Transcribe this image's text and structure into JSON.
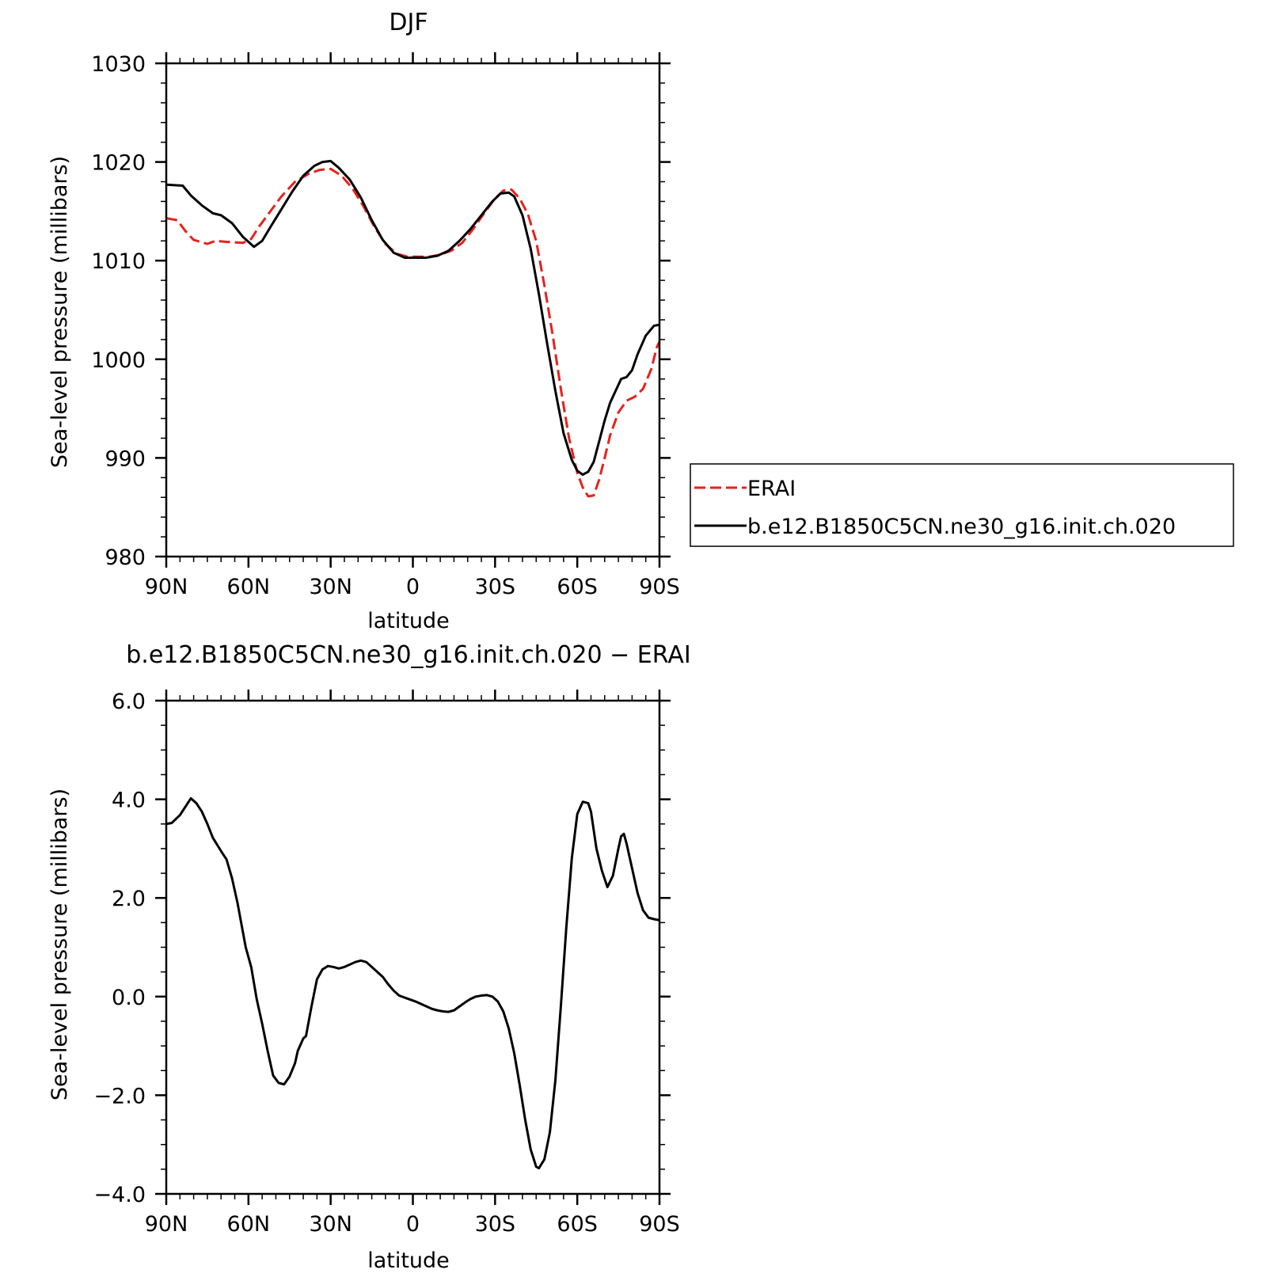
{
  "chart_data": [
    {
      "type": "line",
      "title": "DJF",
      "xlabel": "latitude",
      "ylabel": "Sea-level pressure (millibars)",
      "xlim": [
        -90,
        90
      ],
      "ylim": [
        980,
        1030
      ],
      "x_ticks": [
        {
          "value": -90,
          "label": "90N"
        },
        {
          "value": -60,
          "label": "60N"
        },
        {
          "value": -30,
          "label": "30N"
        },
        {
          "value": 0,
          "label": "0"
        },
        {
          "value": 30,
          "label": "30S"
        },
        {
          "value": 60,
          "label": "60S"
        },
        {
          "value": 90,
          "label": "90S"
        }
      ],
      "y_ticks": [
        {
          "value": 980,
          "label": "980"
        },
        {
          "value": 990,
          "label": "990"
        },
        {
          "value": 1000,
          "label": "1000"
        },
        {
          "value": 1010,
          "label": "1010"
        },
        {
          "value": 1020,
          "label": "1020"
        },
        {
          "value": 1030,
          "label": "1030"
        }
      ],
      "legend_position": "right",
      "series": [
        {
          "name": "ERAI",
          "color": "#e8211c",
          "dash": true,
          "points": [
            [
              -90,
              1014.3
            ],
            [
              -86,
              1014.1
            ],
            [
              -83,
              1013.0
            ],
            [
              -80,
              1012.1
            ],
            [
              -75,
              1011.7
            ],
            [
              -72,
              1012.0
            ],
            [
              -68,
              1011.9
            ],
            [
              -62,
              1011.8
            ],
            [
              -59,
              1012.2
            ],
            [
              -56,
              1013.5
            ],
            [
              -52,
              1015.0
            ],
            [
              -48,
              1016.5
            ],
            [
              -43,
              1018.0
            ],
            [
              -38,
              1018.8
            ],
            [
              -34,
              1019.2
            ],
            [
              -30,
              1019.3
            ],
            [
              -26,
              1018.6
            ],
            [
              -22,
              1017.3
            ],
            [
              -18,
              1015.5
            ],
            [
              -14,
              1013.4
            ],
            [
              -10,
              1011.7
            ],
            [
              -6,
              1010.7
            ],
            [
              -2,
              1010.4
            ],
            [
              2,
              1010.4
            ],
            [
              6,
              1010.4
            ],
            [
              10,
              1010.6
            ],
            [
              14,
              1011.0
            ],
            [
              18,
              1011.8
            ],
            [
              22,
              1013.2
            ],
            [
              26,
              1014.8
            ],
            [
              30,
              1016.3
            ],
            [
              33,
              1017.1
            ],
            [
              36,
              1017.2
            ],
            [
              39,
              1016.3
            ],
            [
              42,
              1014.7
            ],
            [
              45,
              1012.0
            ],
            [
              48,
              1007.5
            ],
            [
              51,
              1002.5
            ],
            [
              54,
              997.0
            ],
            [
              57,
              992.0
            ],
            [
              60,
              988.5
            ],
            [
              62,
              987.0
            ],
            [
              64,
              986.1
            ],
            [
              66,
              986.2
            ],
            [
              68,
              987.8
            ],
            [
              70,
              990.0
            ],
            [
              72,
              992.3
            ],
            [
              75,
              994.6
            ],
            [
              78,
              995.8
            ],
            [
              81,
              996.2
            ],
            [
              84,
              997.0
            ],
            [
              87,
              999.0
            ],
            [
              89,
              1001.2
            ],
            [
              90,
              1001.8
            ]
          ]
        },
        {
          "name": "b.e12.B1850C5CN.ne30_g16.init.ch.020",
          "color": "#000000",
          "dash": false,
          "points": [
            [
              -90,
              1017.7
            ],
            [
              -84,
              1017.6
            ],
            [
              -81,
              1016.6
            ],
            [
              -77,
              1015.6
            ],
            [
              -73,
              1014.8
            ],
            [
              -70,
              1014.6
            ],
            [
              -66,
              1013.8
            ],
            [
              -62,
              1012.4
            ],
            [
              -58,
              1011.4
            ],
            [
              -55,
              1012.0
            ],
            [
              -52,
              1013.4
            ],
            [
              -48,
              1015.2
            ],
            [
              -44,
              1017.0
            ],
            [
              -40,
              1018.6
            ],
            [
              -36,
              1019.6
            ],
            [
              -33,
              1020.0
            ],
            [
              -30,
              1020.1
            ],
            [
              -27,
              1019.4
            ],
            [
              -23,
              1018.2
            ],
            [
              -19,
              1016.4
            ],
            [
              -15,
              1014.1
            ],
            [
              -11,
              1012.1
            ],
            [
              -7,
              1010.8
            ],
            [
              -3,
              1010.3
            ],
            [
              0,
              1010.3
            ],
            [
              5,
              1010.3
            ],
            [
              9,
              1010.5
            ],
            [
              13,
              1011.0
            ],
            [
              17,
              1012.0
            ],
            [
              21,
              1013.2
            ],
            [
              25,
              1014.6
            ],
            [
              29,
              1016.0
            ],
            [
              32,
              1016.8
            ],
            [
              35,
              1016.9
            ],
            [
              37,
              1016.5
            ],
            [
              40,
              1014.6
            ],
            [
              43,
              1011.2
            ],
            [
              46,
              1006.6
            ],
            [
              49,
              1001.6
            ],
            [
              52,
              996.8
            ],
            [
              55,
              992.5
            ],
            [
              58,
              989.8
            ],
            [
              60,
              988.7
            ],
            [
              62,
              988.3
            ],
            [
              64,
              988.6
            ],
            [
              66,
              989.6
            ],
            [
              68,
              991.7
            ],
            [
              70,
              993.8
            ],
            [
              72,
              995.6
            ],
            [
              74,
              996.8
            ],
            [
              76,
              998.0
            ],
            [
              78,
              998.2
            ],
            [
              80,
              998.9
            ],
            [
              82,
              1000.5
            ],
            [
              85,
              1002.4
            ],
            [
              88,
              1003.4
            ],
            [
              90,
              1003.5
            ]
          ]
        }
      ]
    },
    {
      "type": "line",
      "title": "b.e12.B1850C5CN.ne30_g16.init.ch.020 − ERAI",
      "xlabel": "latitude",
      "ylabel": "Sea-level pressure (millibars)",
      "xlim": [
        -90,
        90
      ],
      "ylim": [
        -4,
        6
      ],
      "x_ticks": [
        {
          "value": -90,
          "label": "90N"
        },
        {
          "value": -60,
          "label": "60N"
        },
        {
          "value": -30,
          "label": "30N"
        },
        {
          "value": 0,
          "label": "0"
        },
        {
          "value": 30,
          "label": "30S"
        },
        {
          "value": 60,
          "label": "60S"
        },
        {
          "value": 90,
          "label": "90S"
        }
      ],
      "y_ticks": [
        {
          "value": -4,
          "label": "−4.0"
        },
        {
          "value": -2,
          "label": "−2.0"
        },
        {
          "value": 0,
          "label": "0.0"
        },
        {
          "value": 2,
          "label": "2.0"
        },
        {
          "value": 4,
          "label": "4.0"
        },
        {
          "value": 6,
          "label": "6.0"
        }
      ],
      "series": [
        {
          "color": "#000000",
          "dash": false,
          "points": [
            [
              -90,
              3.5
            ],
            [
              -88,
              3.52
            ],
            [
              -85,
              3.68
            ],
            [
              -83,
              3.85
            ],
            [
              -81,
              4.02
            ],
            [
              -79,
              3.92
            ],
            [
              -77,
              3.75
            ],
            [
              -75,
              3.5
            ],
            [
              -73,
              3.22
            ],
            [
              -70,
              2.95
            ],
            [
              -68,
              2.78
            ],
            [
              -66,
              2.4
            ],
            [
              -64,
              1.9
            ],
            [
              -62,
              1.3
            ],
            [
              -61,
              1.0
            ],
            [
              -59,
              0.6
            ],
            [
              -57,
              -0.05
            ],
            [
              -55,
              -0.55
            ],
            [
              -53,
              -1.1
            ],
            [
              -51,
              -1.6
            ],
            [
              -49,
              -1.75
            ],
            [
              -47,
              -1.78
            ],
            [
              -45,
              -1.62
            ],
            [
              -43,
              -1.35
            ],
            [
              -42,
              -1.1
            ],
            [
              -40,
              -0.85
            ],
            [
              -39,
              -0.8
            ],
            [
              -37,
              -0.2
            ],
            [
              -35,
              0.35
            ],
            [
              -33,
              0.55
            ],
            [
              -31,
              0.62
            ],
            [
              -29,
              0.6
            ],
            [
              -27,
              0.57
            ],
            [
              -25,
              0.6
            ],
            [
              -23,
              0.65
            ],
            [
              -21,
              0.7
            ],
            [
              -19,
              0.73
            ],
            [
              -17,
              0.7
            ],
            [
              -15,
              0.6
            ],
            [
              -13,
              0.5
            ],
            [
              -11,
              0.4
            ],
            [
              -9,
              0.25
            ],
            [
              -7,
              0.12
            ],
            [
              -5,
              0.02
            ],
            [
              -3,
              -0.02
            ],
            [
              -1,
              -0.06
            ],
            [
              1,
              -0.1
            ],
            [
              3,
              -0.15
            ],
            [
              5,
              -0.2
            ],
            [
              7,
              -0.25
            ],
            [
              9,
              -0.28
            ],
            [
              11,
              -0.3
            ],
            [
              13,
              -0.31
            ],
            [
              15,
              -0.28
            ],
            [
              17,
              -0.2
            ],
            [
              19,
              -0.12
            ],
            [
              21,
              -0.05
            ],
            [
              23,
              0.0
            ],
            [
              25,
              0.02
            ],
            [
              27,
              0.03
            ],
            [
              29,
              0.0
            ],
            [
              31,
              -0.1
            ],
            [
              33,
              -0.3
            ],
            [
              35,
              -0.65
            ],
            [
              37,
              -1.15
            ],
            [
              39,
              -1.8
            ],
            [
              41,
              -2.5
            ],
            [
              43,
              -3.1
            ],
            [
              45,
              -3.45
            ],
            [
              46,
              -3.48
            ],
            [
              48,
              -3.3
            ],
            [
              50,
              -2.75
            ],
            [
              52,
              -1.7
            ],
            [
              54,
              -0.2
            ],
            [
              56,
              1.4
            ],
            [
              58,
              2.8
            ],
            [
              60,
              3.7
            ],
            [
              62,
              3.95
            ],
            [
              64,
              3.92
            ],
            [
              65,
              3.75
            ],
            [
              67,
              3.0
            ],
            [
              69,
              2.55
            ],
            [
              71,
              2.22
            ],
            [
              73,
              2.45
            ],
            [
              75,
              3.0
            ],
            [
              76,
              3.25
            ],
            [
              77,
              3.3
            ],
            [
              78,
              3.1
            ],
            [
              80,
              2.6
            ],
            [
              82,
              2.1
            ],
            [
              84,
              1.75
            ],
            [
              86,
              1.6
            ],
            [
              88,
              1.57
            ],
            [
              90,
              1.55
            ]
          ]
        }
      ]
    }
  ]
}
